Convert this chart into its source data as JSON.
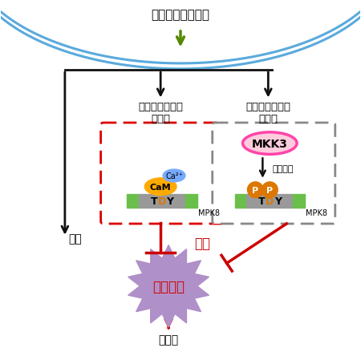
{
  "title_text": "傷などのストレス",
  "left_box_label1": "リン酸化以外の",
  "left_box_label2": "活性化",
  "right_box_label1": "定説のリン酸化",
  "right_box_label2": "リレー",
  "mkk3_label": "MKK3",
  "phosphorylation_label": "リン酸化",
  "mpk8_label": "MPK8",
  "cam_label": "CaM",
  "ca2_label": "Ca²⁺",
  "seimei_label": "生成",
  "yokusei_label": "抑制",
  "ros_label": "活性酸素",
  "death_label": "細脹死",
  "bg_color": "#ffffff",
  "cell_color": "#5aaadd",
  "left_box_color": "#dd0000",
  "right_box_color": "#888888",
  "tdy_bar_gray": "#999999",
  "tdy_bar_green": "#6abf4b",
  "cam_color": "#ffaa00",
  "ca2_color": "#77aaff",
  "mkk3_fill": "#ffccdd",
  "mkk3_border": "#ff44aa",
  "p_circle_color": "#dd7700",
  "ros_fill": "#b090c8",
  "ros_text_color": "#cc0000",
  "arrow_green": "#558800",
  "arrow_black": "#111111",
  "arrow_red": "#cc0000",
  "inhibit_color": "#cc0000"
}
